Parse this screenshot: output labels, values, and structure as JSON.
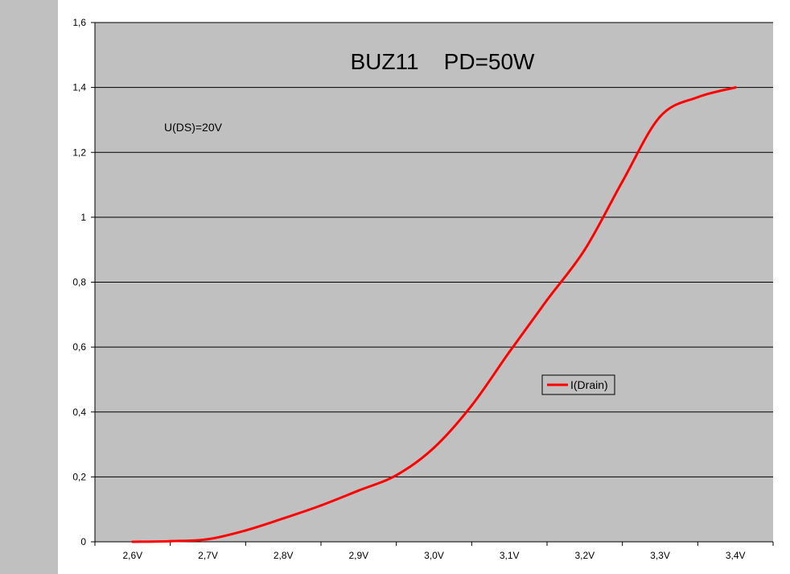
{
  "chart_data": {
    "type": "line",
    "title": "BUZ11    PD=50W",
    "annotations": [
      "U(DS)=20V"
    ],
    "categories": [
      "2,6V",
      "2,7V",
      "2,8V",
      "2,9V",
      "3,0V",
      "3,1V",
      "3,2V",
      "3,3V",
      "3,4V"
    ],
    "xlim": [
      2.55,
      3.45
    ],
    "ylim": [
      0,
      1.6
    ],
    "y_ticks": [
      0,
      0.2,
      0.4,
      0.6,
      0.8,
      1,
      1.2,
      1.4,
      1.6
    ],
    "y_tick_labels": [
      "0",
      "0,2",
      "0,4",
      "0,6",
      "0,8",
      "1",
      "1,2",
      "1,4",
      "1,6"
    ],
    "series": [
      {
        "name": "I(Drain)",
        "color": "#ff0000",
        "x": [
          2.6,
          2.65,
          2.7,
          2.75,
          2.8,
          2.85,
          2.9,
          2.95,
          3.0,
          3.05,
          3.1,
          3.15,
          3.2,
          3.25,
          3.3,
          3.35,
          3.4
        ],
        "y": [
          0,
          0.002,
          0.008,
          0.035,
          0.072,
          0.112,
          0.158,
          0.205,
          0.29,
          0.42,
          0.585,
          0.745,
          0.9,
          1.11,
          1.31,
          1.37,
          1.4
        ]
      }
    ],
    "grid": "horizontal",
    "legend": "right",
    "plot_background": "#c0c0c0"
  }
}
